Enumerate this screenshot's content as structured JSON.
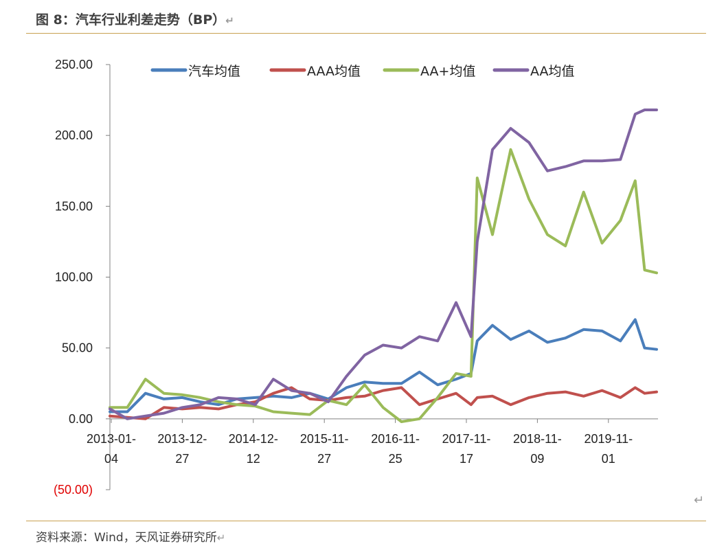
{
  "doc": {
    "title": "图 8：汽车行业利差走势（BP）",
    "source": "资料来源：Wind，天风证券研究所",
    "return_glyph": "↵"
  },
  "chart_data": {
    "type": "line",
    "title": "",
    "xlabel": "",
    "ylabel": "",
    "ylim": [
      -50,
      250
    ],
    "yticks": [
      "250.00",
      "200.00",
      "150.00",
      "100.00",
      "50.00",
      "0.00",
      "(50.00)"
    ],
    "xticks": [
      {
        "line1": "2013-01-",
        "line2": "04"
      },
      {
        "line1": "2013-12-",
        "line2": "27"
      },
      {
        "line1": "2014-12-",
        "line2": "12"
      },
      {
        "line1": "2015-11-",
        "line2": "27"
      },
      {
        "line1": "2016-11-",
        "line2": "25"
      },
      {
        "line1": "2017-11-",
        "line2": "17"
      },
      {
        "line1": "2018-11-",
        "line2": "09"
      },
      {
        "line1": "2019-11-",
        "line2": "01"
      }
    ],
    "x": [
      "2013-01-04",
      "2013-04-01",
      "2013-07-01",
      "2013-10-01",
      "2014-01-01",
      "2014-04-01",
      "2014-07-01",
      "2014-10-01",
      "2015-01-01",
      "2015-04-01",
      "2015-07-01",
      "2015-10-01",
      "2016-01-01",
      "2016-04-01",
      "2016-07-01",
      "2016-10-01",
      "2017-01-01",
      "2017-04-01",
      "2017-07-01",
      "2017-10-01",
      "2017-12-15",
      "2018-01-15",
      "2018-04-01",
      "2018-07-01",
      "2018-10-01",
      "2019-01-01",
      "2019-04-01",
      "2019-07-01",
      "2019-10-01",
      "2020-01-01",
      "2020-03-15",
      "2020-05-01",
      "2020-06-30"
    ],
    "series": [
      {
        "name": "汽车均值",
        "color": "#4a7ebb",
        "values": [
          5,
          5,
          18,
          14,
          15,
          12,
          10,
          14,
          15,
          16,
          15,
          18,
          14,
          22,
          26,
          25,
          25,
          33,
          24,
          28,
          32,
          55,
          66,
          56,
          62,
          54,
          57,
          63,
          62,
          55,
          70,
          50,
          49
        ]
      },
      {
        "name": "AAA均值",
        "color": "#c0504d",
        "values": [
          2,
          1,
          0,
          8,
          7,
          8,
          7,
          10,
          12,
          18,
          22,
          14,
          13,
          15,
          16,
          20,
          22,
          10,
          14,
          18,
          10,
          15,
          16,
          10,
          15,
          18,
          19,
          16,
          20,
          15,
          22,
          18,
          19
        ]
      },
      {
        "name": "AA+均值",
        "color": "#9bbb59",
        "values": [
          8,
          8,
          28,
          18,
          17,
          15,
          12,
          10,
          9,
          5,
          4,
          3,
          13,
          10,
          24,
          8,
          -2,
          0,
          15,
          32,
          30,
          170,
          130,
          190,
          155,
          130,
          122,
          160,
          124,
          140,
          168,
          105,
          103
        ]
      },
      {
        "name": "AA均值",
        "color": "#8064a2",
        "values": [
          7,
          0,
          2,
          4,
          8,
          10,
          15,
          14,
          10,
          28,
          20,
          18,
          12,
          30,
          45,
          52,
          50,
          58,
          55,
          82,
          58,
          125,
          190,
          205,
          195,
          175,
          178,
          182,
          182,
          183,
          215,
          218,
          218
        ]
      }
    ],
    "grid": false,
    "legend": "top"
  }
}
